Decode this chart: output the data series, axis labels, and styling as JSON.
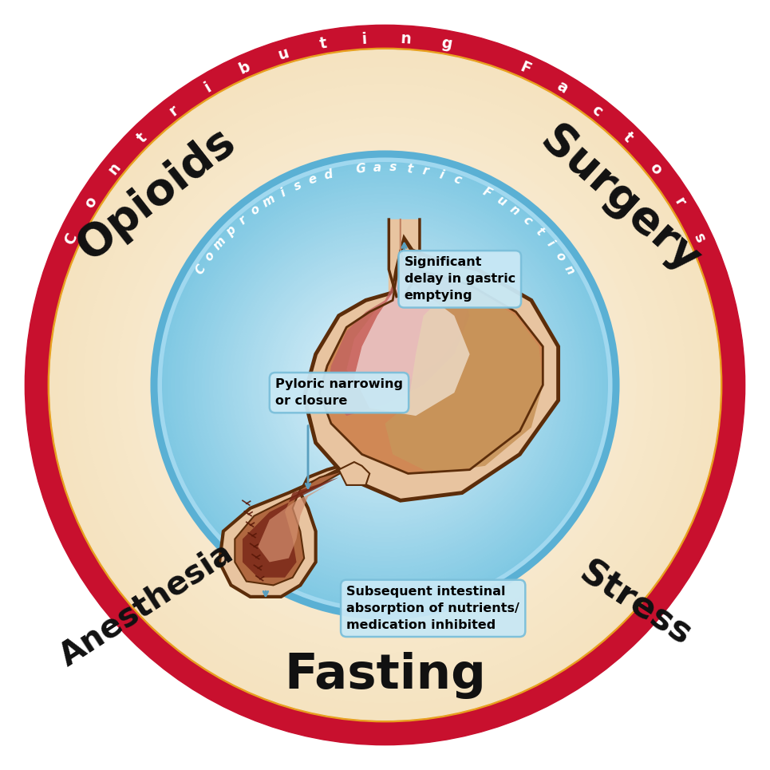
{
  "title": "Contributing Factors",
  "title_color": "#FFFFFF",
  "outer_ring_color": "#C8102E",
  "gold_ring_color": "#E8A020",
  "cream_color": "#F5E3C0",
  "cream_center_color": "#FFF8EC",
  "blue_outer_color": "#7EC8E3",
  "blue_inner_color": "#EAF6FC",
  "compromised_label": "Compromised Gastric Function",
  "compromised_label_color": "#FFFFFF",
  "label1": "Significant\ndelay in gastric\nemptying",
  "label2": "Pyloric narrowing\nor closure",
  "label3": "Subsequent intestinal\nabsorption of nutrients/\nmedication inhibited",
  "box_fill": "#C8E8F5",
  "box_edge": "#7BBFDA",
  "background_color": "#FFFFFF",
  "stomach_outer": "#5C2D0A",
  "stomach_wall": "#D4956A",
  "stomach_inner_top": "#C96060",
  "stomach_body": "#C8845A",
  "stomach_tan": "#D4A870",
  "pylorus_outer": "#5C2D0A",
  "pylorus_fill": "#B8704A",
  "pylorus_inner": "#8B3020",
  "pylorus_mucosa": "#8B3020"
}
